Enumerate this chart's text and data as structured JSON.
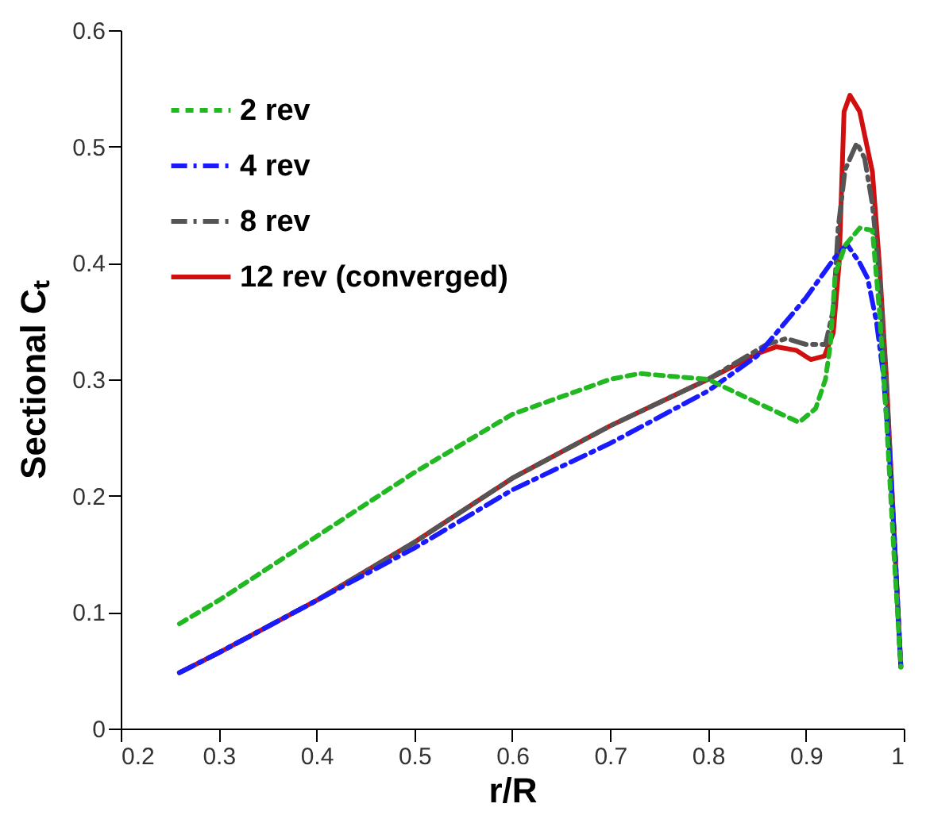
{
  "chart_data": {
    "type": "line",
    "xlabel": "r/R",
    "ylabel": "Sectional Cₜ",
    "xlim": [
      0.2,
      1
    ],
    "ylim": [
      0,
      0.6
    ],
    "xticks": [
      0.2,
      0.3,
      0.4,
      0.5,
      0.6,
      0.7,
      0.8,
      0.9,
      1
    ],
    "yticks": [
      0,
      0.1,
      0.2,
      0.3,
      0.4,
      0.5,
      0.6
    ],
    "legend": "top left",
    "series": [
      {
        "name": "2 rev",
        "color": "#22b822",
        "line_style": "dotted",
        "x": [
          0.26,
          0.3,
          0.4,
          0.5,
          0.6,
          0.7,
          0.73,
          0.8,
          0.85,
          0.893,
          0.91,
          0.92,
          0.925,
          0.93,
          0.94,
          0.955,
          0.968,
          0.975,
          0.982,
          0.99,
          0.997
        ],
        "values": [
          0.09,
          0.11,
          0.165,
          0.22,
          0.27,
          0.3,
          0.305,
          0.3,
          0.28,
          0.263,
          0.275,
          0.3,
          0.33,
          0.39,
          0.415,
          0.43,
          0.428,
          0.36,
          0.27,
          0.15,
          0.053
        ]
      },
      {
        "name": "4 rev",
        "color": "#1a1aff",
        "line_style": "dashed",
        "x": [
          0.26,
          0.3,
          0.4,
          0.5,
          0.6,
          0.7,
          0.8,
          0.85,
          0.9,
          0.93,
          0.942,
          0.955,
          0.963,
          0.972,
          0.979,
          0.985,
          0.99,
          0.997
        ],
        "values": [
          0.048,
          0.065,
          0.11,
          0.155,
          0.205,
          0.245,
          0.29,
          0.32,
          0.37,
          0.405,
          0.416,
          0.4,
          0.387,
          0.35,
          0.305,
          0.24,
          0.17,
          0.053
        ]
      },
      {
        "name": "8 rev",
        "color": "#555555",
        "line_style": "dashed",
        "x": [
          0.26,
          0.3,
          0.4,
          0.5,
          0.6,
          0.7,
          0.8,
          0.86,
          0.88,
          0.9,
          0.92,
          0.928,
          0.933,
          0.94,
          0.952,
          0.96,
          0.968,
          0.975,
          0.982,
          0.99,
          0.997
        ],
        "values": [
          0.048,
          0.065,
          0.11,
          0.16,
          0.215,
          0.26,
          0.3,
          0.33,
          0.335,
          0.33,
          0.33,
          0.36,
          0.43,
          0.48,
          0.503,
          0.49,
          0.45,
          0.39,
          0.3,
          0.17,
          0.053
        ]
      },
      {
        "name": "12 rev (converged)",
        "color": "#d01010",
        "line_style": "solid",
        "x": [
          0.26,
          0.3,
          0.4,
          0.5,
          0.6,
          0.7,
          0.8,
          0.85,
          0.87,
          0.89,
          0.905,
          0.919,
          0.928,
          0.934,
          0.939,
          0.945,
          0.955,
          0.968,
          0.975,
          0.982,
          0.99,
          0.997
        ],
        "values": [
          0.048,
          0.065,
          0.11,
          0.16,
          0.215,
          0.26,
          0.3,
          0.322,
          0.328,
          0.325,
          0.317,
          0.32,
          0.34,
          0.4,
          0.53,
          0.544,
          0.53,
          0.478,
          0.4,
          0.305,
          0.17,
          0.053
        ]
      }
    ]
  }
}
